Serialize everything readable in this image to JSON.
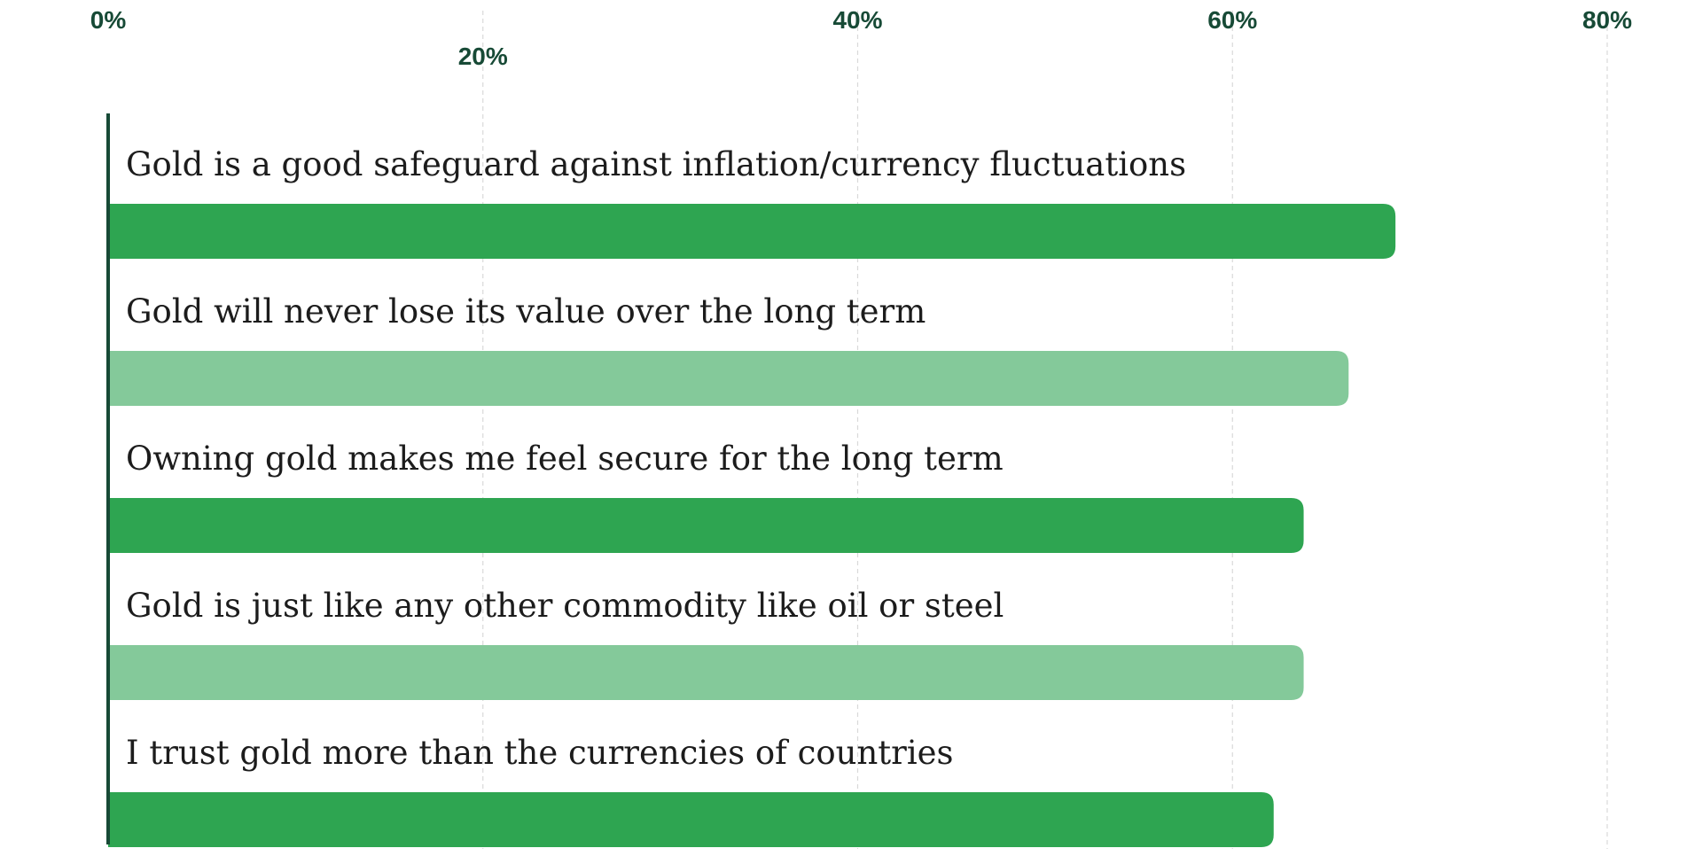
{
  "colors": {
    "axis": "#174a36",
    "tick_text": "#174a36",
    "grid": "#d9d9d9",
    "label_text": "#1c1c1c",
    "bar_dark": "#2ea551",
    "bar_light": "#84c99a"
  },
  "chart_data": {
    "type": "bar",
    "orientation": "horizontal",
    "title": "",
    "xlabel": "",
    "ylabel": "",
    "xlim": [
      0,
      80
    ],
    "x_ticks": [
      "0%",
      "20%",
      "40%",
      "60%",
      "80%"
    ],
    "x_tick_values": [
      0,
      20,
      40,
      60,
      80
    ],
    "tick_position": "top",
    "grid": true,
    "legend": "none",
    "categories": [
      "Gold is a good safeguard against inflation/currency fluctuations",
      "Gold will never lose its value over the long term",
      "Owning gold makes me feel secure for the long term",
      "Gold is just like any other commodity like oil or steel",
      "I trust gold more than the currencies of countries"
    ],
    "values": [
      68.7,
      66.2,
      63.8,
      63.8,
      62.2
    ],
    "bar_colors": [
      "#2ea551",
      "#84c99a",
      "#2ea551",
      "#84c99a",
      "#2ea551"
    ]
  }
}
